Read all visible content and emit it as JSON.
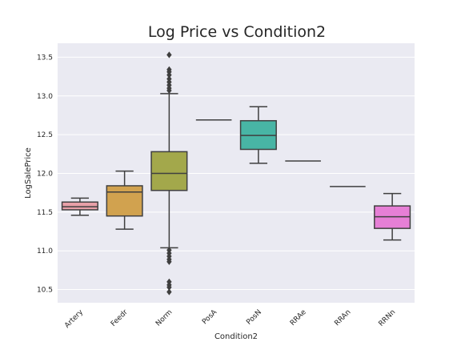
{
  "chart_data": {
    "type": "box",
    "title": "Log Price vs Condition2",
    "xlabel": "Condition2",
    "ylabel": "LogSalePrice",
    "ylim": [
      10.33,
      13.68
    ],
    "yticks": [
      "10.5",
      "11.0",
      "11.5",
      "12.0",
      "12.5",
      "13.0",
      "13.5"
    ],
    "grid": true,
    "colors": {
      "background": "#EAEAF2",
      "grid": "#FFFFFF",
      "line": "#3F3F3F"
    },
    "categories": [
      "Artery",
      "Feedr",
      "Norm",
      "PosA",
      "PosN",
      "RRAe",
      "RRAn",
      "RRNn"
    ],
    "boxes": [
      {
        "category": "Artery",
        "color": "#E8A0A8",
        "whisker_low": 11.46,
        "q1": 11.53,
        "median": 11.57,
        "q3": 11.63,
        "whisker_high": 11.68,
        "outliers": []
      },
      {
        "category": "Feedr",
        "color": "#D1A24F",
        "whisker_low": 11.28,
        "q1": 11.45,
        "median": 11.76,
        "q3": 11.84,
        "whisker_high": 12.03,
        "outliers": []
      },
      {
        "category": "Norm",
        "color": "#A3A84B",
        "whisker_low": 11.04,
        "q1": 11.78,
        "median": 12.0,
        "q3": 12.28,
        "whisker_high": 13.03,
        "outliers": [
          13.07,
          13.1,
          13.14,
          13.18,
          13.22,
          13.27,
          13.31,
          13.34,
          13.53,
          11.01,
          10.97,
          10.93,
          10.89,
          10.86,
          10.6,
          10.56,
          10.53,
          10.47
        ]
      },
      {
        "category": "PosA",
        "color": "#6EB56E",
        "whisker_low": 12.69,
        "q1": 12.69,
        "median": 12.69,
        "q3": 12.69,
        "whisker_high": 12.69,
        "outliers": []
      },
      {
        "category": "PosN",
        "color": "#48B5A5",
        "whisker_low": 12.13,
        "q1": 12.31,
        "median": 12.49,
        "q3": 12.68,
        "whisker_high": 12.86,
        "outliers": []
      },
      {
        "category": "RRAe",
        "color": "#55A8C8",
        "whisker_low": 12.16,
        "q1": 12.16,
        "median": 12.16,
        "q3": 12.16,
        "whisker_high": 12.16,
        "outliers": []
      },
      {
        "category": "RRAn",
        "color": "#8FA2E0",
        "whisker_low": 11.83,
        "q1": 11.83,
        "median": 11.83,
        "q3": 11.83,
        "whisker_high": 11.83,
        "outliers": []
      },
      {
        "category": "RRNn",
        "color": "#E67FD6",
        "whisker_low": 11.14,
        "q1": 11.29,
        "median": 11.44,
        "q3": 11.58,
        "whisker_high": 11.74,
        "outliers": []
      }
    ]
  }
}
